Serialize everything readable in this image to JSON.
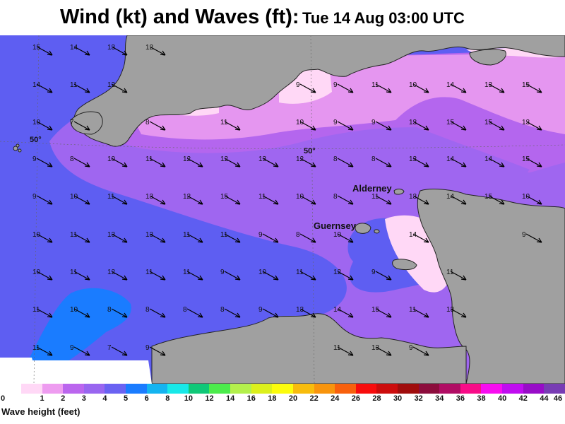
{
  "title": {
    "main": "Wind (kt) and Waves (ft):",
    "time": "Tue 14 Aug 03:00 UTC"
  },
  "map": {
    "latitude_label": "50°",
    "places": [
      {
        "id": "alderney",
        "name": "Alderney"
      },
      {
        "id": "guernsey",
        "name": "Guernsey"
      }
    ],
    "wind_barbs": [
      {
        "speed": 15,
        "dir": "NW"
      },
      {
        "speed": 14,
        "dir": "NW"
      },
      {
        "speed": 13,
        "dir": "NW"
      },
      {
        "speed": 12,
        "dir": "NW"
      },
      {
        "speed": 14,
        "dir": "NW"
      },
      {
        "speed": 11,
        "dir": "NW"
      },
      {
        "speed": 12,
        "dir": "NW"
      },
      {
        "speed": 9,
        "dir": "NW"
      },
      {
        "speed": 9,
        "dir": "NW"
      },
      {
        "speed": 11,
        "dir": "NW"
      },
      {
        "speed": 10,
        "dir": "NW"
      },
      {
        "speed": 14,
        "dir": "NW"
      },
      {
        "speed": 13,
        "dir": "NW"
      },
      {
        "speed": 15,
        "dir": "NW"
      },
      {
        "speed": 10,
        "dir": "NW"
      },
      {
        "speed": 7,
        "dir": "NW"
      },
      {
        "speed": 8,
        "dir": "NW"
      },
      {
        "speed": 11,
        "dir": "NW"
      },
      {
        "speed": 10,
        "dir": "NW"
      },
      {
        "speed": 9,
        "dir": "NW"
      },
      {
        "speed": 9,
        "dir": "NW"
      },
      {
        "speed": 13,
        "dir": "NW"
      },
      {
        "speed": 15,
        "dir": "NW"
      },
      {
        "speed": 15,
        "dir": "NW"
      },
      {
        "speed": 13,
        "dir": "NW"
      },
      {
        "speed": 9,
        "dir": "NW"
      },
      {
        "speed": 8,
        "dir": "NW"
      },
      {
        "speed": 10,
        "dir": "NW"
      },
      {
        "speed": 11,
        "dir": "NW"
      },
      {
        "speed": 12,
        "dir": "NW"
      },
      {
        "speed": 12,
        "dir": "NW"
      },
      {
        "speed": 13,
        "dir": "NW"
      },
      {
        "speed": 12,
        "dir": "NW"
      },
      {
        "speed": 8,
        "dir": "NW"
      },
      {
        "speed": 8,
        "dir": "NW"
      },
      {
        "speed": 13,
        "dir": "NW"
      },
      {
        "speed": 14,
        "dir": "NW"
      },
      {
        "speed": 14,
        "dir": "NW"
      },
      {
        "speed": 15,
        "dir": "NW"
      },
      {
        "speed": 9,
        "dir": "NW"
      },
      {
        "speed": 10,
        "dir": "NW"
      },
      {
        "speed": 11,
        "dir": "NW"
      },
      {
        "speed": 13,
        "dir": "NW"
      },
      {
        "speed": 12,
        "dir": "NW"
      },
      {
        "speed": 15,
        "dir": "NW"
      },
      {
        "speed": 11,
        "dir": "NW"
      },
      {
        "speed": 10,
        "dir": "NW"
      },
      {
        "speed": 8,
        "dir": "NW"
      },
      {
        "speed": 11,
        "dir": "NW"
      },
      {
        "speed": 13,
        "dir": "NW"
      },
      {
        "speed": 14,
        "dir": "NW"
      },
      {
        "speed": 15,
        "dir": "NW"
      },
      {
        "speed": 10,
        "dir": "NW"
      },
      {
        "speed": 10,
        "dir": "NW"
      },
      {
        "speed": 11,
        "dir": "NW"
      },
      {
        "speed": 13,
        "dir": "NW"
      },
      {
        "speed": 13,
        "dir": "NW"
      },
      {
        "speed": 11,
        "dir": "NW"
      },
      {
        "speed": 11,
        "dir": "NW"
      },
      {
        "speed": 9,
        "dir": "NW"
      },
      {
        "speed": 8,
        "dir": "NW"
      },
      {
        "speed": 10,
        "dir": "NW"
      },
      {
        "speed": 14,
        "dir": "NW"
      },
      {
        "speed": 9,
        "dir": "NW"
      },
      {
        "speed": 10,
        "dir": "NW"
      },
      {
        "speed": 11,
        "dir": "NW"
      },
      {
        "speed": 12,
        "dir": "NW"
      },
      {
        "speed": 11,
        "dir": "NW"
      },
      {
        "speed": 11,
        "dir": "NW"
      },
      {
        "speed": 9,
        "dir": "NW"
      },
      {
        "speed": 10,
        "dir": "NW"
      },
      {
        "speed": 11,
        "dir": "NW"
      },
      {
        "speed": 12,
        "dir": "NW"
      },
      {
        "speed": 9,
        "dir": "NW"
      },
      {
        "speed": 11,
        "dir": "NW"
      },
      {
        "speed": 11,
        "dir": "NW"
      },
      {
        "speed": 10,
        "dir": "NW"
      },
      {
        "speed": 8,
        "dir": "NW"
      },
      {
        "speed": 8,
        "dir": "NW"
      },
      {
        "speed": 8,
        "dir": "NW"
      },
      {
        "speed": 8,
        "dir": "NW"
      },
      {
        "speed": 9,
        "dir": "NW"
      },
      {
        "speed": 13,
        "dir": "NW"
      },
      {
        "speed": 14,
        "dir": "NW"
      },
      {
        "speed": 15,
        "dir": "NW"
      },
      {
        "speed": 11,
        "dir": "NW"
      },
      {
        "speed": 13,
        "dir": "NW"
      },
      {
        "speed": 11,
        "dir": "NW"
      },
      {
        "speed": 9,
        "dir": "NW"
      },
      {
        "speed": 7,
        "dir": "NW"
      },
      {
        "speed": 9,
        "dir": "NW"
      },
      {
        "speed": 11,
        "dir": "NW"
      },
      {
        "speed": 13,
        "dir": "NW"
      },
      {
        "speed": 9,
        "dir": "NW"
      }
    ]
  },
  "legend": {
    "label": "Wave height (feet)",
    "ticks": [
      "0",
      "1",
      "2",
      "3",
      "4",
      "5",
      "6",
      "8",
      "10",
      "12",
      "14",
      "16",
      "18",
      "20",
      "22",
      "24",
      "26",
      "28",
      "30",
      "32",
      "34",
      "36",
      "38",
      "40",
      "42",
      "44",
      "46"
    ],
    "colors": [
      "#ffd8f6",
      "#ee9cf0",
      "#bb66ee",
      "#9966f0",
      "#6a62f2",
      "#1a7cff",
      "#14b4f0",
      "#18e8e8",
      "#10c878",
      "#4cec4c",
      "#b4f04c",
      "#dcf01c",
      "#fcfc0c",
      "#f8bc0c",
      "#f8940c",
      "#f8600c",
      "#f80c0c",
      "#cc0c0c",
      "#a00c0c",
      "#8c0c3c",
      "#b00c64",
      "#f80c88",
      "#f80cf0",
      "#c00cf0",
      "#980cc8",
      "#783cb4"
    ]
  }
}
